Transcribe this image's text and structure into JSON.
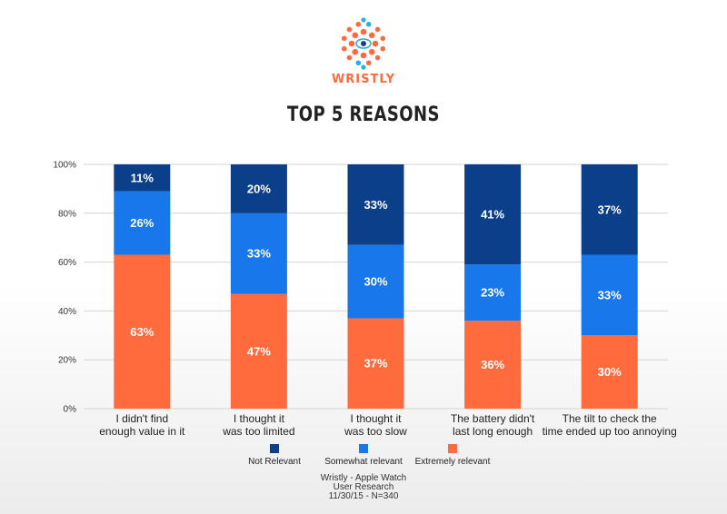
{
  "brand": "WRISTLY",
  "title": "TOP 5 REASONS",
  "footer": {
    "line1": "Wristly - Apple Watch",
    "line2": "User Research",
    "line3": "11/30/15 - N=340"
  },
  "colors": {
    "not_relevant": "#0b3f8a",
    "somewhat_relevant": "#1877ea",
    "extremely_relevant": "#ff6b3d",
    "logo_orange": "#ff6a3d",
    "logo_blue": "#27b0e6"
  },
  "chart_data": {
    "type": "bar",
    "stacked": true,
    "title": "TOP 5 REASONS",
    "categories": [
      [
        "I didn't find",
        "enough value in it"
      ],
      [
        "I thought it",
        "was too limited"
      ],
      [
        "I thought it",
        "was too slow"
      ],
      [
        "The battery didn't",
        "last long enough"
      ],
      [
        "The tilt to check the",
        "time ended up too annoying"
      ]
    ],
    "series": [
      {
        "name": "Extremely relevant",
        "color": "#ff6b3d",
        "values": [
          63,
          47,
          37,
          36,
          30
        ],
        "labels": [
          "63%",
          "47%",
          "37%",
          "36%",
          "30%"
        ]
      },
      {
        "name": "Somewhat relevant",
        "color": "#1877ea",
        "values": [
          26,
          33,
          30,
          23,
          33
        ],
        "labels": [
          "26%",
          "33%",
          "30%",
          "23%",
          "33%"
        ]
      },
      {
        "name": "Not Relevant",
        "color": "#0b3f8a",
        "values": [
          11,
          20,
          33,
          41,
          37
        ],
        "labels": [
          "11%",
          "20%",
          "33%",
          "41%",
          "37%"
        ]
      }
    ],
    "legend_order": [
      "Not Relevant",
      "Somewhat relevant",
      "Extremely relevant"
    ],
    "yticks": [
      "0%",
      "20%",
      "40%",
      "60%",
      "80%",
      "100%"
    ],
    "ylim": [
      0,
      100
    ],
    "xlabel": "",
    "ylabel": "",
    "legend_position": "bottom-center",
    "grid": true
  }
}
